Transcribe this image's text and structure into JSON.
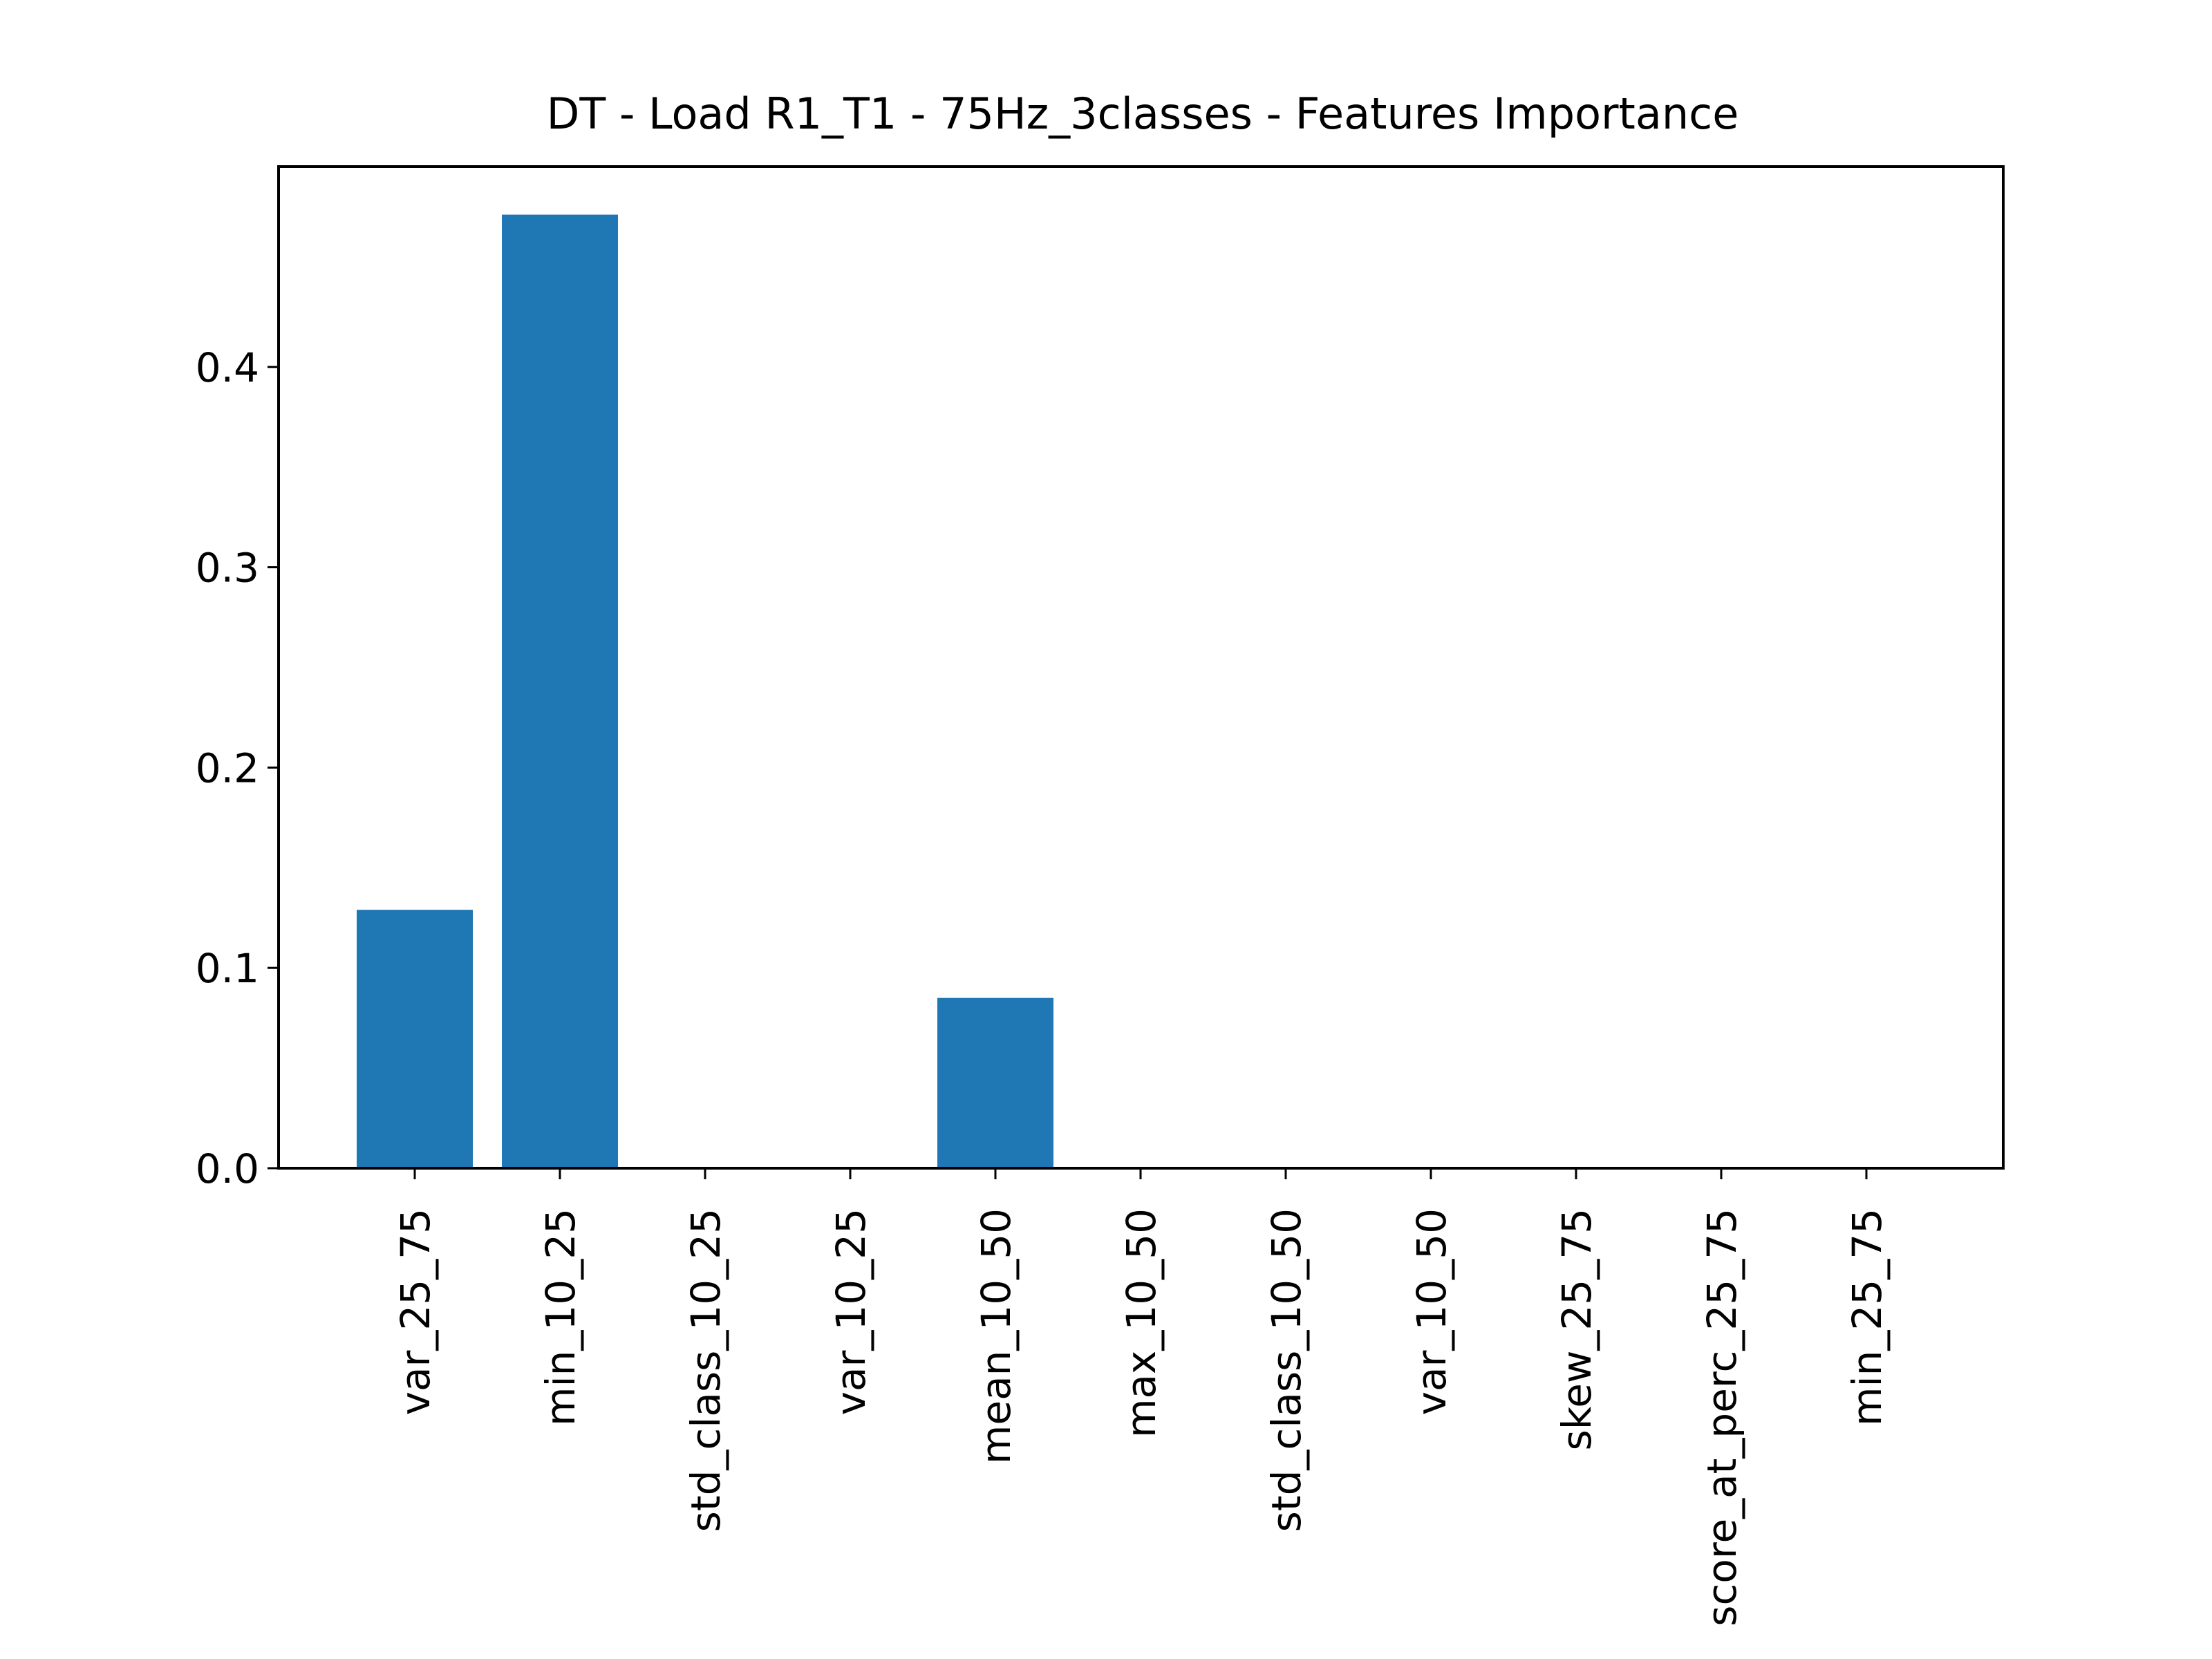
{
  "chart_data": {
    "type": "bar",
    "title": "DT - Load R1_T1 - 75Hz_3classes - Features Importance",
    "xlabel": "",
    "ylabel": "",
    "categories": [
      "var_25_75",
      "min_10_25",
      "std_class_10_25",
      "var_10_25",
      "mean_10_50",
      "max_10_50",
      "std_class_10_50",
      "var_10_50",
      "skew_25_75",
      "score_at_perc_25_75",
      "min_25_75"
    ],
    "values": [
      0.129,
      0.476,
      0.0,
      0.0,
      0.085,
      0.0,
      0.0,
      0.0,
      0.0,
      0.0,
      0.0
    ],
    "ylim": [
      0.0,
      0.5
    ],
    "yticks": [
      0.0,
      0.1,
      0.2,
      0.3,
      0.4
    ],
    "ytick_labels": [
      "0.0",
      "0.1",
      "0.2",
      "0.3",
      "0.4"
    ],
    "grid": false,
    "bar_color": "#1f77b4",
    "axes_color": "#000000",
    "text_color": "#000000"
  }
}
